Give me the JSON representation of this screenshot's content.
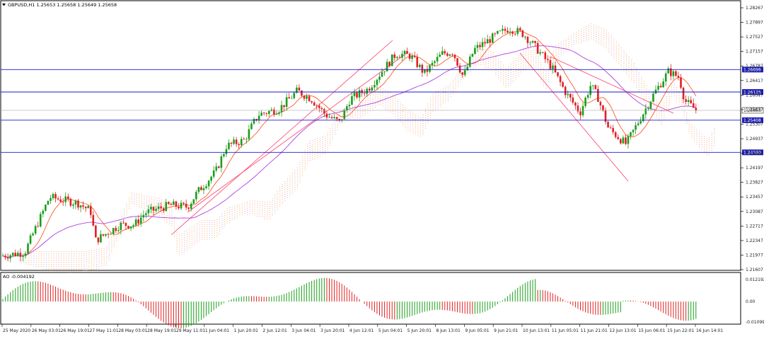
{
  "header": {
    "symbol_line": "GBPUSD,H1  1.25653 1.25658 1.25649 1.25658",
    "dropdown_icon": "triangle-down-icon"
  },
  "main_panel": {
    "price_ticks": [
      "1.28267",
      "1.27897",
      "1.27527",
      "1.27157",
      "1.26787",
      "1.26417",
      "1.26047",
      "1.25677",
      "1.25307",
      "1.24937",
      "1.24567",
      "1.24197",
      "1.23827",
      "1.23457",
      "1.23087",
      "1.22717",
      "1.22347",
      "1.21977",
      "1.21607"
    ],
    "horizontal_levels": [
      {
        "label": "1.26696",
        "value": 1.26696
      },
      {
        "label": "1.26125",
        "value": 1.26125
      },
      {
        "label": "1.25408",
        "value": 1.25408
      },
      {
        "label": "1.24590",
        "value": 1.2459
      }
    ],
    "current_price_label": "1.25658",
    "current_price": 1.25658,
    "colors": {
      "bull": "#1a9e1a",
      "bear": "#e02020",
      "levels": "#1a1acc",
      "level_label_bg": "#1f1fb0",
      "ma_fast": "#ff5a2a",
      "ma_slow": "#b040e0",
      "cloud": "#f4a36c",
      "cloud2": "#b7a0e8",
      "channel": "#ff3d6a"
    }
  },
  "ao_panel": {
    "label": "AO -0.004192",
    "ticks": [
      "0.012192",
      "0.00",
      "-0.010998"
    ]
  },
  "time_axis": [
    "25 May 2020",
    "26 May 03:01",
    "26 May 19:01",
    "27 May 11:01",
    "28 May 03:01",
    "28 May 19:01",
    "29 May 11:01",
    "1 Jun 04:01",
    "1 Jun 20:01",
    "2 Jun 12:01",
    "3 Jun 04:01",
    "3 Jun 20:01",
    "4 Jun 12:01",
    "5 Jun 04:01",
    "5 Jun 20:01",
    "8 Jun 13:01",
    "9 Jun 05:01",
    "9 Jun 21:01",
    "10 Jun 13:01",
    "11 Jun 05:01",
    "11 Jun 21:01",
    "12 Jun 13:01",
    "15 Jun 06:01",
    "15 Jun 22:01",
    "16 Jun 14:01"
  ]
}
